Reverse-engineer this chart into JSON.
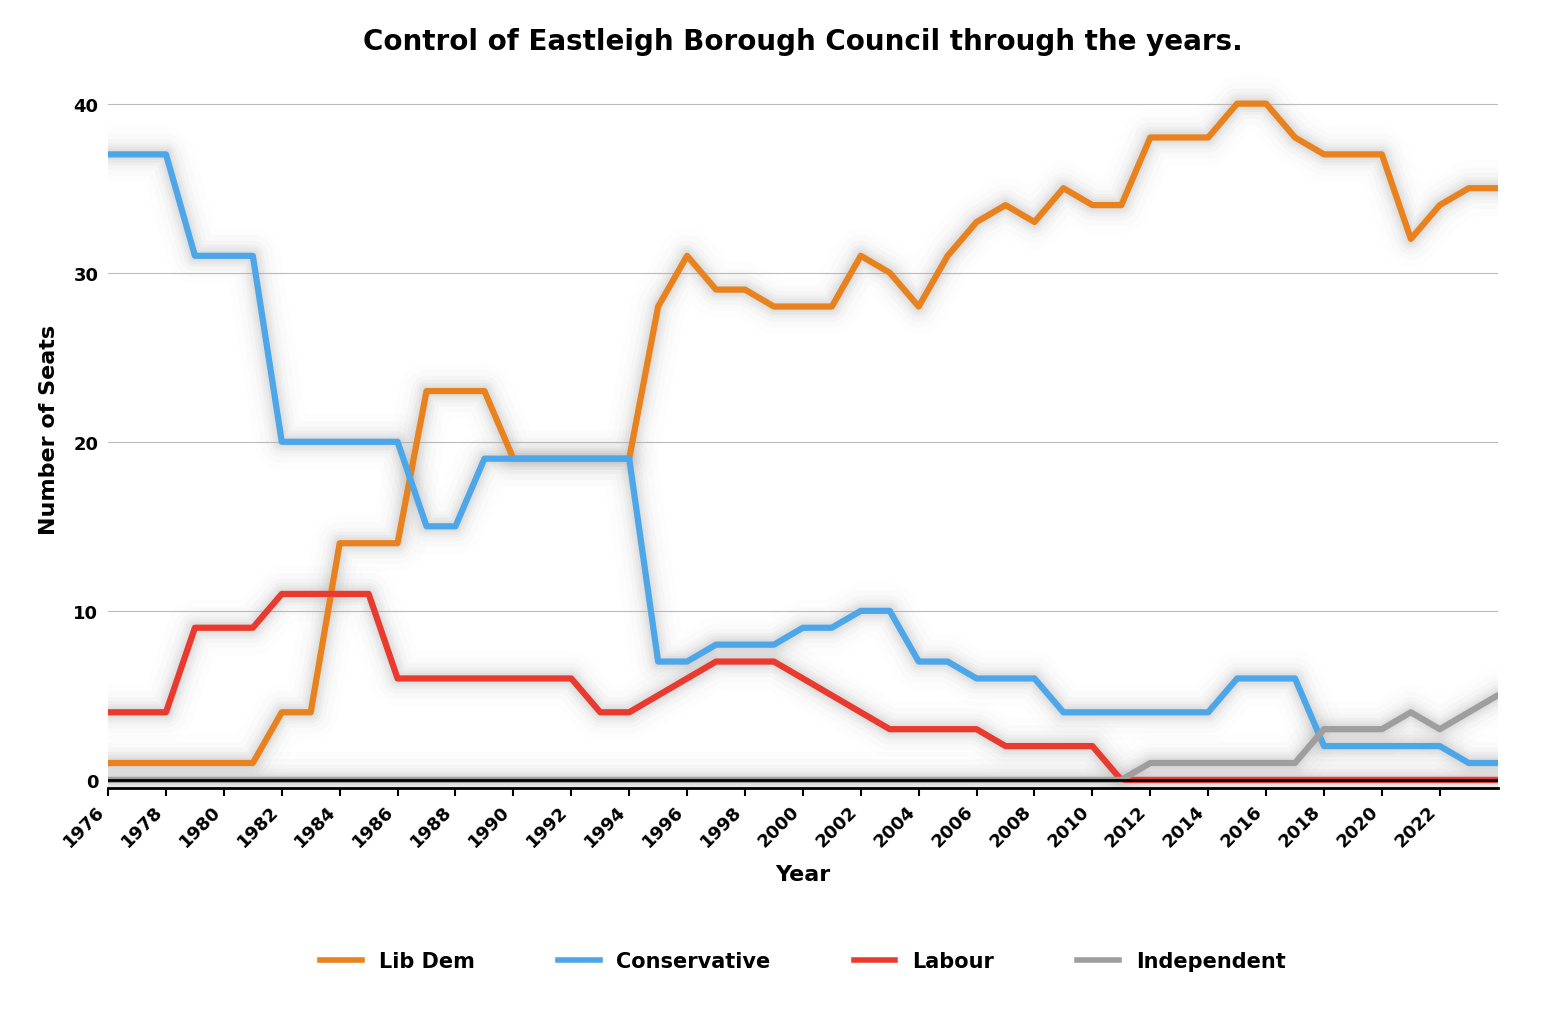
{
  "title": "Control of Eastleigh Borough Council through the years.",
  "xlabel": "Year",
  "ylabel": "Number of Seats",
  "ylim": [
    -0.5,
    42
  ],
  "yticks": [
    0,
    10,
    20,
    30,
    40
  ],
  "series": {
    "Lib Dem": {
      "color": "#E8821E",
      "linewidth": 4.5,
      "years": [
        1976,
        1977,
        1978,
        1979,
        1980,
        1981,
        1982,
        1983,
        1984,
        1985,
        1986,
        1987,
        1988,
        1989,
        1990,
        1991,
        1992,
        1993,
        1994,
        1995,
        1996,
        1997,
        1998,
        1999,
        2000,
        2001,
        2002,
        2003,
        2004,
        2005,
        2006,
        2007,
        2008,
        2009,
        2010,
        2011,
        2012,
        2013,
        2014,
        2015,
        2016,
        2017,
        2018,
        2019,
        2020,
        2021,
        2022,
        2023,
        2024
      ],
      "seats": [
        1,
        1,
        1,
        1,
        1,
        1,
        4,
        4,
        14,
        14,
        14,
        23,
        23,
        23,
        19,
        19,
        19,
        19,
        19,
        28,
        31,
        29,
        29,
        28,
        28,
        28,
        31,
        30,
        28,
        31,
        33,
        34,
        33,
        35,
        34,
        34,
        38,
        38,
        38,
        40,
        40,
        38,
        37,
        37,
        37,
        32,
        34,
        35,
        35
      ]
    },
    "Conservative": {
      "color": "#4DA6E8",
      "linewidth": 4.5,
      "years": [
        1976,
        1977,
        1978,
        1979,
        1980,
        1981,
        1982,
        1983,
        1984,
        1985,
        1986,
        1987,
        1988,
        1989,
        1990,
        1991,
        1992,
        1993,
        1994,
        1995,
        1996,
        1997,
        1998,
        1999,
        2000,
        2001,
        2002,
        2003,
        2004,
        2005,
        2006,
        2007,
        2008,
        2009,
        2010,
        2011,
        2012,
        2013,
        2014,
        2015,
        2016,
        2017,
        2018,
        2019,
        2020,
        2021,
        2022,
        2023,
        2024
      ],
      "seats": [
        37,
        37,
        37,
        31,
        31,
        31,
        20,
        20,
        20,
        20,
        20,
        15,
        15,
        19,
        19,
        19,
        19,
        19,
        19,
        7,
        7,
        8,
        8,
        8,
        9,
        9,
        10,
        10,
        7,
        7,
        6,
        6,
        6,
        4,
        4,
        4,
        4,
        4,
        4,
        6,
        6,
        6,
        2,
        2,
        2,
        2,
        2,
        1,
        1
      ]
    },
    "Labour": {
      "color": "#E83A2E",
      "linewidth": 4.5,
      "years": [
        1976,
        1977,
        1978,
        1979,
        1980,
        1981,
        1982,
        1983,
        1984,
        1985,
        1986,
        1987,
        1988,
        1989,
        1990,
        1991,
        1992,
        1993,
        1994,
        1995,
        1996,
        1997,
        1998,
        1999,
        2000,
        2001,
        2002,
        2003,
        2004,
        2005,
        2006,
        2007,
        2008,
        2009,
        2010,
        2011,
        2012,
        2013,
        2014,
        2015,
        2016,
        2017,
        2018,
        2019,
        2020,
        2021,
        2022,
        2023,
        2024
      ],
      "seats": [
        4,
        4,
        4,
        9,
        9,
        9,
        11,
        11,
        11,
        11,
        6,
        6,
        6,
        6,
        6,
        6,
        6,
        4,
        4,
        5,
        6,
        7,
        7,
        7,
        6,
        5,
        4,
        3,
        3,
        3,
        3,
        2,
        2,
        2,
        2,
        0,
        0,
        0,
        0,
        0,
        0,
        0,
        0,
        0,
        0,
        0,
        0,
        0,
        0
      ]
    },
    "Independent": {
      "color": "#9E9E9E",
      "linewidth": 4.5,
      "years": [
        1976,
        1977,
        1978,
        1979,
        1980,
        1981,
        1982,
        1983,
        1984,
        1985,
        1986,
        1987,
        1988,
        1989,
        1990,
        1991,
        1992,
        1993,
        1994,
        1995,
        1996,
        1997,
        1998,
        1999,
        2000,
        2001,
        2002,
        2003,
        2004,
        2005,
        2006,
        2007,
        2008,
        2009,
        2010,
        2011,
        2012,
        2013,
        2014,
        2015,
        2016,
        2017,
        2018,
        2019,
        2020,
        2021,
        2022,
        2023,
        2024
      ],
      "seats": [
        0,
        0,
        0,
        0,
        0,
        0,
        0,
        0,
        0,
        0,
        0,
        0,
        0,
        0,
        0,
        0,
        0,
        0,
        0,
        0,
        0,
        0,
        0,
        0,
        0,
        0,
        0,
        0,
        0,
        0,
        0,
        0,
        0,
        0,
        0,
        0,
        1,
        1,
        1,
        1,
        1,
        1,
        3,
        3,
        3,
        4,
        3,
        4,
        5
      ]
    }
  },
  "xticks": [
    1976,
    1978,
    1980,
    1982,
    1984,
    1986,
    1988,
    1990,
    1992,
    1994,
    1996,
    1998,
    2000,
    2002,
    2004,
    2006,
    2008,
    2010,
    2012,
    2014,
    2016,
    2018,
    2020,
    2022
  ],
  "background_color": "#FFFFFF",
  "legend": [
    {
      "label": "Lib Dem",
      "color": "#E8821E"
    },
    {
      "label": "Conservative",
      "color": "#4DA6E8"
    },
    {
      "label": "Labour",
      "color": "#E83A2E"
    },
    {
      "label": "Independent",
      "color": "#9E9E9E"
    }
  ]
}
